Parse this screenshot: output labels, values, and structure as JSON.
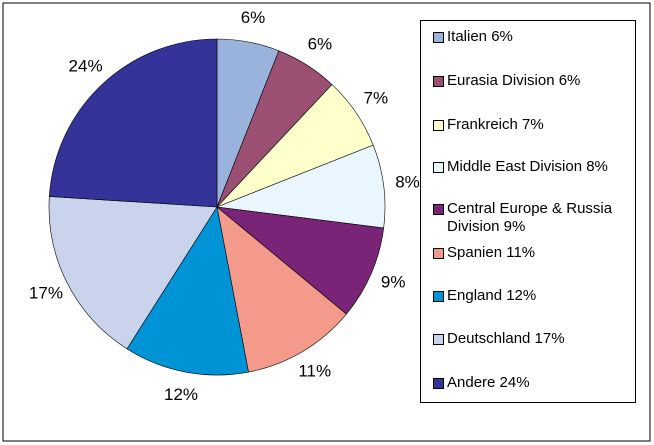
{
  "chart_data": {
    "type": "pie",
    "categories": [
      "Italien 6%",
      "Eurasia Division 6%",
      "Frankreich 7%",
      "Middle East Division 8%",
      "Central Europe & Russia Division 9%",
      "Spanien 11%",
      "England 12%",
      "Deutschland 17%",
      "Andere 24%"
    ],
    "values": [
      6,
      6,
      7,
      8,
      9,
      11,
      12,
      17,
      24
    ],
    "value_labels": [
      "6%",
      "6%",
      "7%",
      "8%",
      "9%",
      "11%",
      "12%",
      "17%",
      "24%"
    ],
    "colors": [
      "#99b3dd",
      "#9b4f73",
      "#ffffcc",
      "#eaf6fd",
      "#7a2477",
      "#f49a8b",
      "#0094d6",
      "#c9d3ec",
      "#333399"
    ],
    "legend": "right"
  }
}
